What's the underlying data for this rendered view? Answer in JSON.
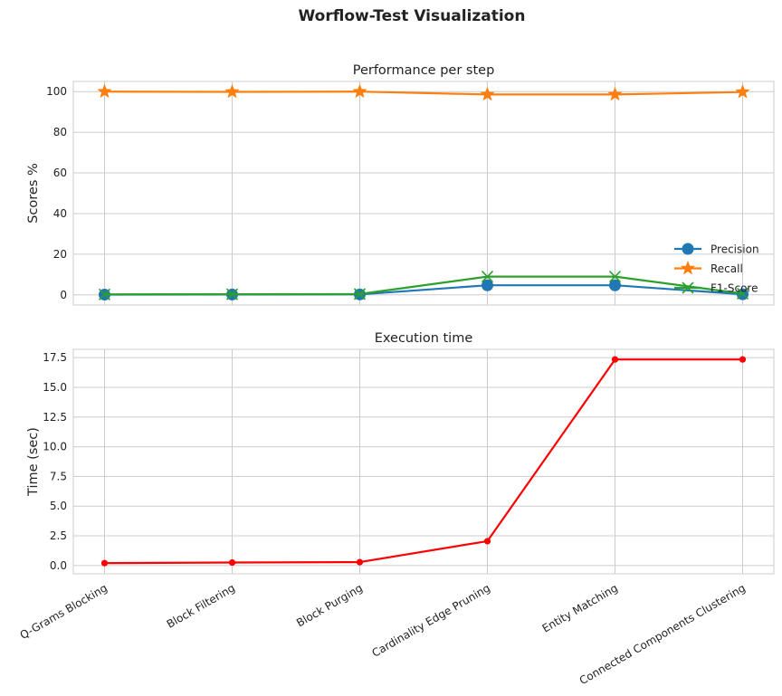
{
  "figure_title": "Worflow-Test Visualization",
  "chart_data": [
    {
      "type": "line",
      "title": "Performance per step",
      "xlabel": "",
      "ylabel": "Scores %",
      "categories": [
        "Q-Grams Blocking",
        "Block Filtering",
        "Block Purging",
        "Cardinality Edge Pruning",
        "Entity Matching",
        "Connected Components Clustering"
      ],
      "ylim": [
        -5,
        105
      ],
      "yticks": [
        0,
        20,
        40,
        60,
        80,
        100
      ],
      "grid": true,
      "legend": "lower-right",
      "series": [
        {
          "name": "Precision",
          "color": "#1f77b4",
          "marker": "circle",
          "values": [
            0.1,
            0.15,
            0.2,
            4.7,
            4.7,
            0.3
          ]
        },
        {
          "name": "Recall",
          "color": "#ff7f0e",
          "marker": "star",
          "values": [
            100,
            99.9,
            100,
            98.6,
            98.6,
            99.8
          ]
        },
        {
          "name": "F1-Score",
          "color": "#2ca02c",
          "marker": "x",
          "values": [
            0.2,
            0.3,
            0.4,
            9.0,
            9.0,
            0.6
          ]
        }
      ]
    },
    {
      "type": "line",
      "title": "Execution time",
      "xlabel": "",
      "ylabel": "Time (sec)",
      "categories": [
        "Q-Grams Blocking",
        "Block Filtering",
        "Block Purging",
        "Cardinality Edge Pruning",
        "Entity Matching",
        "Connected Components Clustering"
      ],
      "ylim": [
        -0.7,
        18.2
      ],
      "yticks": [
        0.0,
        2.5,
        5.0,
        7.5,
        10.0,
        12.5,
        15.0,
        17.5
      ],
      "yticklabels": [
        "0.0",
        "2.5",
        "5.0",
        "7.5",
        "10.0",
        "12.5",
        "15.0",
        "17.5"
      ],
      "grid": true,
      "series": [
        {
          "color": "#ff0000",
          "marker": "circle",
          "values": [
            0.2,
            0.25,
            0.28,
            2.05,
            17.35,
            17.35
          ]
        }
      ]
    }
  ]
}
